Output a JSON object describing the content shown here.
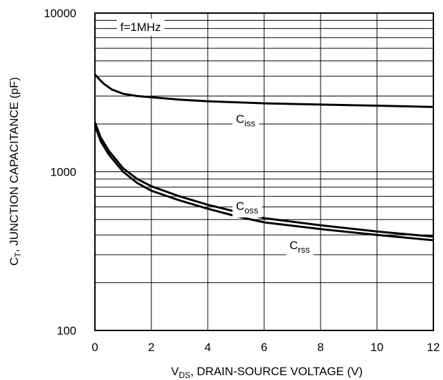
{
  "chart_data": {
    "type": "line",
    "xlabel": {
      "main": "V",
      "sub": "DS",
      "rest": ", DRAIN-SOURCE VOLTAGE (V)"
    },
    "ylabel": {
      "main": "C",
      "sub": "T",
      "rest": ", JUNCTION CAPACITANCE (pF)"
    },
    "xlim": [
      0,
      12
    ],
    "ylim": [
      100,
      10000
    ],
    "yscale": "log",
    "grid": true,
    "x_ticks": [
      0,
      2,
      4,
      6,
      8,
      10,
      12
    ],
    "x_tick_labels": [
      "0",
      "2",
      "4",
      "6",
      "8",
      "10",
      "12"
    ],
    "y_ticks": [
      100,
      1000,
      10000
    ],
    "y_tick_labels": [
      "100",
      "1000",
      "10000"
    ],
    "annotations": [
      {
        "text": "f=1MHz",
        "x": 0.9,
        "y": 7700
      },
      {
        "main": "C",
        "sub": "iss",
        "x": 5.0,
        "y": 2030
      },
      {
        "main": "C",
        "sub": "oss",
        "x": 5.0,
        "y": 575
      },
      {
        "main": "C",
        "sub": "rss",
        "x": 6.9,
        "y": 325
      }
    ],
    "series": [
      {
        "label": "iss",
        "x": [
          0,
          0.3,
          0.6,
          1.0,
          1.5,
          2.0,
          3.0,
          4.0,
          6.0,
          8.0,
          10.0,
          12.0
        ],
        "y": [
          4100,
          3600,
          3300,
          3100,
          3000,
          2950,
          2850,
          2780,
          2700,
          2650,
          2610,
          2560
        ]
      },
      {
        "label": "oss",
        "x": [
          0,
          0.2,
          0.5,
          1.0,
          1.5,
          2.0,
          3.0,
          4.0,
          5.0,
          6.0,
          8.0,
          10.0,
          12.0
        ],
        "y": [
          2050,
          1650,
          1350,
          1050,
          900,
          810,
          700,
          620,
          560,
          510,
          460,
          420,
          390
        ]
      },
      {
        "label": "rss",
        "x": [
          0,
          0.2,
          0.5,
          1.0,
          1.5,
          2.0,
          3.0,
          4.0,
          5.0,
          6.0,
          8.0,
          10.0,
          12.0
        ],
        "y": [
          1950,
          1560,
          1280,
          1000,
          850,
          760,
          660,
          585,
          525,
          480,
          435,
          400,
          370
        ]
      }
    ]
  }
}
